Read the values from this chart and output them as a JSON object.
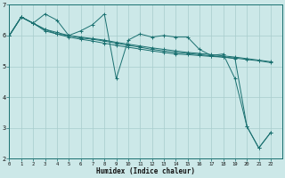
{
  "xlabel": "Humidex (Indice chaleur)",
  "xlim": [
    0,
    23
  ],
  "ylim": [
    2,
    7
  ],
  "bg_color": "#cce8e8",
  "line_color": "#1a7070",
  "grid_color": "#a8cccc",
  "line_data": [
    [
      [
        0,
        6.0
      ],
      [
        1,
        6.6
      ],
      [
        2,
        6.4
      ],
      [
        3,
        6.7
      ],
      [
        4,
        6.5
      ],
      [
        5,
        6.0
      ],
      [
        6,
        6.15
      ],
      [
        7,
        6.35
      ],
      [
        8,
        6.7
      ],
      [
        9,
        4.6
      ],
      [
        10,
        5.85
      ],
      [
        11,
        6.05
      ],
      [
        12,
        5.95
      ],
      [
        13,
        6.0
      ],
      [
        14,
        5.95
      ],
      [
        15,
        5.95
      ],
      [
        16,
        5.55
      ],
      [
        17,
        5.35
      ],
      [
        18,
        5.4
      ],
      [
        19,
        4.6
      ],
      [
        20,
        3.05
      ],
      [
        21,
        2.35
      ],
      [
        22,
        2.85
      ]
    ],
    [
      [
        0,
        6.0
      ],
      [
        1,
        6.6
      ],
      [
        2,
        6.4
      ],
      [
        3,
        6.15
      ],
      [
        4,
        6.05
      ],
      [
        5,
        5.95
      ],
      [
        6,
        5.88
      ],
      [
        7,
        5.82
      ],
      [
        8,
        5.75
      ],
      [
        9,
        5.68
      ],
      [
        10,
        5.62
      ],
      [
        11,
        5.56
      ],
      [
        12,
        5.5
      ],
      [
        13,
        5.45
      ],
      [
        14,
        5.4
      ],
      [
        15,
        5.38
      ],
      [
        16,
        5.35
      ],
      [
        17,
        5.32
      ],
      [
        18,
        5.3
      ],
      [
        19,
        5.27
      ],
      [
        20,
        5.22
      ],
      [
        21,
        5.18
      ],
      [
        22,
        5.12
      ]
    ],
    [
      [
        0,
        6.0
      ],
      [
        1,
        6.6
      ],
      [
        2,
        6.4
      ],
      [
        3,
        6.2
      ],
      [
        4,
        6.1
      ],
      [
        5,
        6.0
      ],
      [
        6,
        5.95
      ],
      [
        7,
        5.9
      ],
      [
        8,
        5.85
      ],
      [
        9,
        5.78
      ],
      [
        10,
        5.72
      ],
      [
        11,
        5.66
      ],
      [
        12,
        5.6
      ],
      [
        13,
        5.55
      ],
      [
        14,
        5.5
      ],
      [
        15,
        5.45
      ],
      [
        16,
        5.42
      ],
      [
        17,
        5.38
      ],
      [
        18,
        5.34
      ],
      [
        19,
        5.3
      ],
      [
        20,
        5.25
      ],
      [
        21,
        5.2
      ],
      [
        22,
        5.15
      ]
    ],
    [
      [
        0,
        6.0
      ],
      [
        1,
        6.6
      ],
      [
        2,
        6.4
      ],
      [
        3,
        6.2
      ],
      [
        4,
        6.05
      ],
      [
        5,
        6.0
      ],
      [
        6,
        5.92
      ],
      [
        7,
        5.88
      ],
      [
        8,
        5.82
      ],
      [
        9,
        5.75
      ],
      [
        10,
        5.68
      ],
      [
        11,
        5.62
      ],
      [
        12,
        5.55
      ],
      [
        13,
        5.5
      ],
      [
        14,
        5.45
      ],
      [
        15,
        5.42
      ],
      [
        16,
        5.38
      ],
      [
        17,
        5.34
      ],
      [
        18,
        5.3
      ],
      [
        19,
        5.25
      ],
      [
        20,
        3.05
      ],
      [
        21,
        2.35
      ],
      [
        22,
        2.85
      ]
    ]
  ]
}
